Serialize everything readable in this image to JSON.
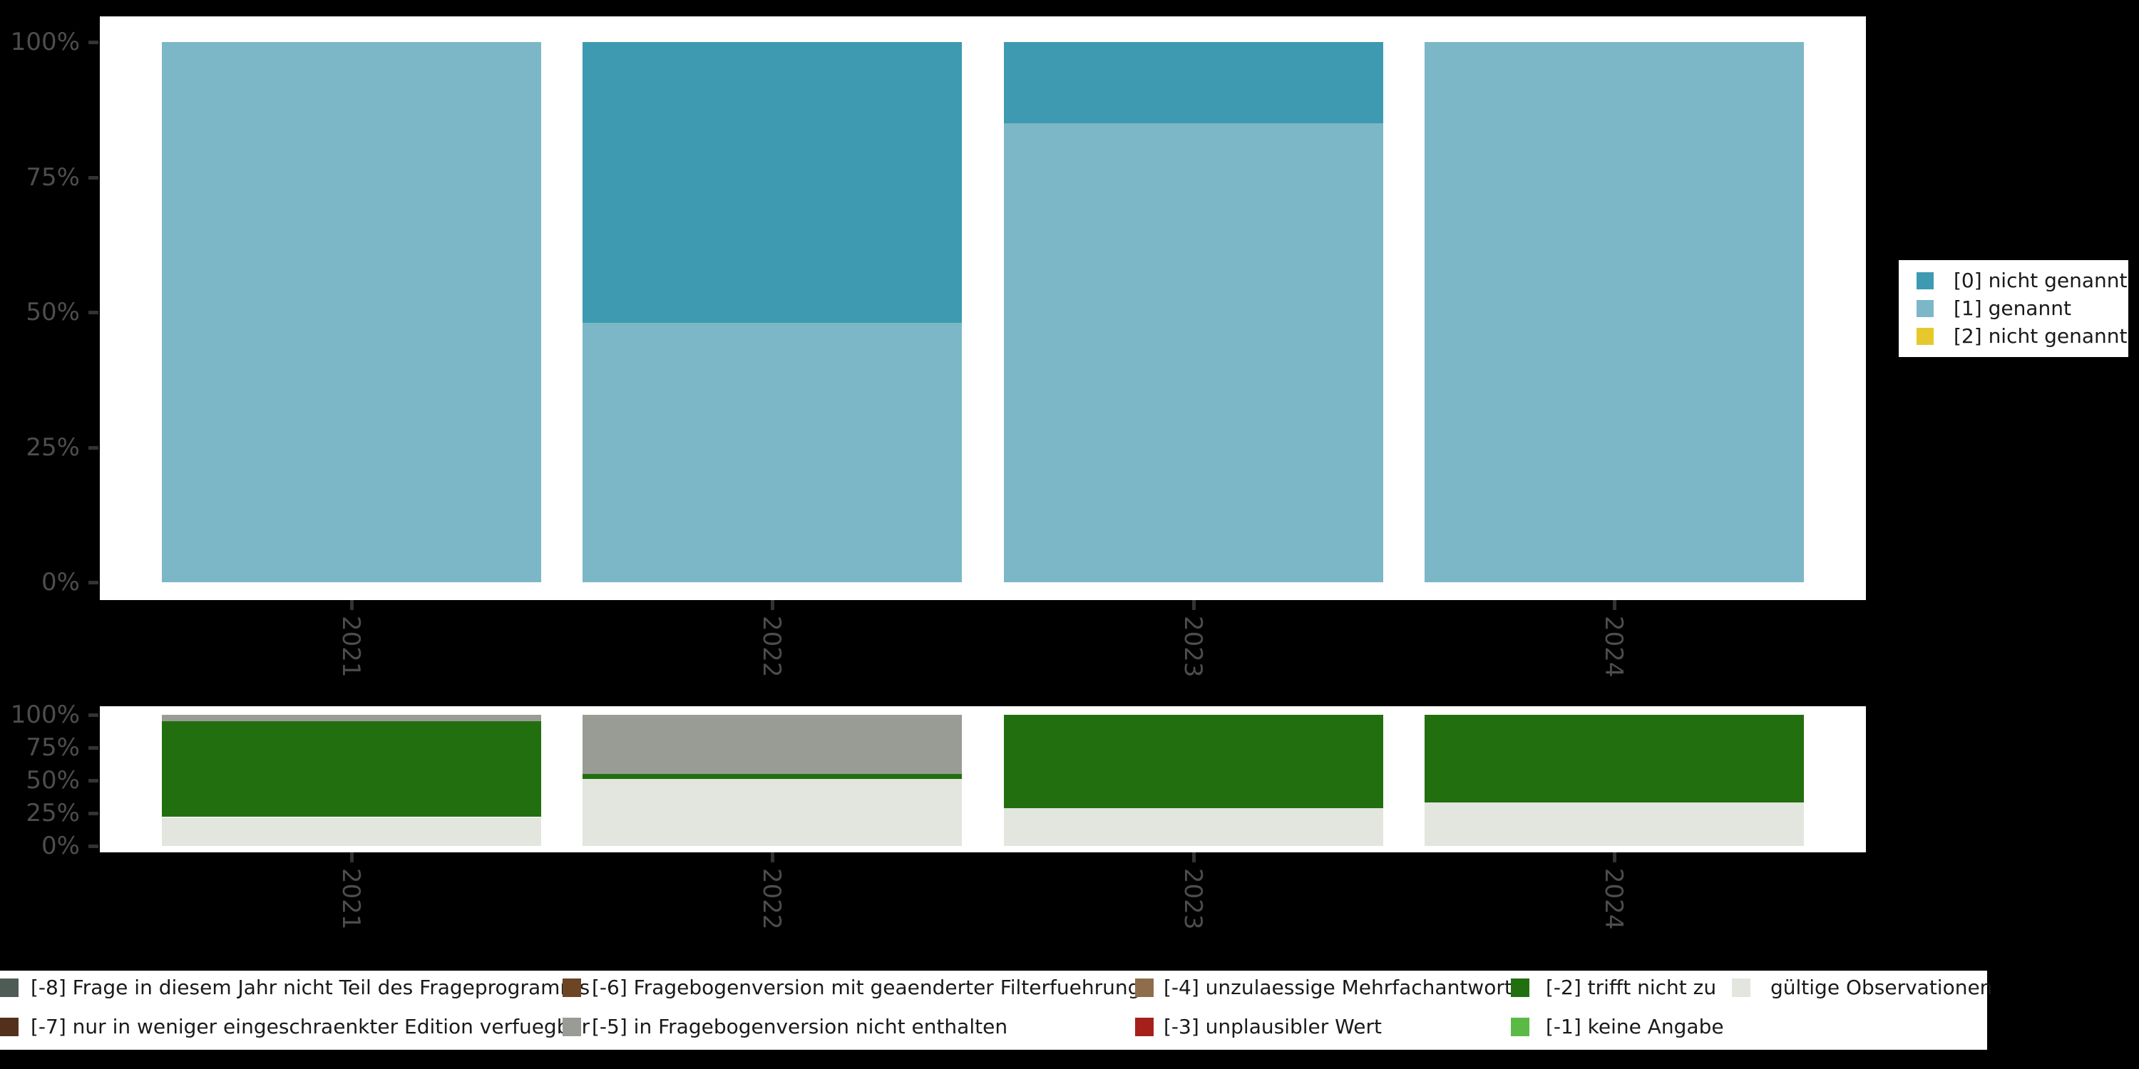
{
  "figure": {
    "background": "#000000",
    "panel_background": "#ffffff"
  },
  "colors": {
    "cat0": "#3D9AB0",
    "cat1": "#7CB7C8",
    "cat2": "#E6C82D",
    "m8": "#4F5B55",
    "m7": "#53301C",
    "m6": "#6C4524",
    "m5": "#999C95",
    "m4": "#8F6D4B",
    "m3": "#A6201B",
    "m2": "#226F10",
    "m1": "#5BBA46",
    "valid": "#E2E6DE",
    "axis_text": "#4D4D4D",
    "tick_mark": "#333333",
    "legend_text": "#1a1a1a"
  },
  "chart_data": [
    {
      "type": "bar",
      "stacked": true,
      "orientation": "vertical",
      "unit": "%",
      "title": "",
      "xlabel": "",
      "ylabel": "",
      "grid": false,
      "categories": [
        "2021",
        "2022",
        "2023",
        "2024"
      ],
      "series": [
        {
          "name": "[0] nicht genannt",
          "color": "cat0",
          "values": [
            0,
            52,
            15,
            0
          ]
        },
        {
          "name": "[1] genannt",
          "color": "cat1",
          "values": [
            100,
            48,
            85,
            100
          ]
        },
        {
          "name": "[2] nicht genannt",
          "color": "cat2",
          "values": [
            0,
            0,
            0,
            0
          ]
        }
      ],
      "y_ticks": [
        "100%",
        "75%",
        "50%",
        "25%",
        "0%"
      ],
      "ylim": [
        0,
        100
      ],
      "legend_position": "right-outside"
    },
    {
      "type": "bar",
      "stacked": true,
      "orientation": "vertical",
      "unit": "%",
      "title": "",
      "xlabel": "",
      "ylabel": "",
      "grid": false,
      "categories": [
        "2021",
        "2022",
        "2023",
        "2024"
      ],
      "series": [
        {
          "name": "[-8] Frage in diesem Jahr nicht Teil des Frageprogramms",
          "color": "m8",
          "values": [
            0,
            0,
            0,
            0
          ]
        },
        {
          "name": "[-7] nur in weniger eingeschraenkter Edition verfuegbar",
          "color": "m7",
          "values": [
            0,
            0,
            0,
            0
          ]
        },
        {
          "name": "[-6] Fragebogenversion mit geaenderter Filterfuehrung",
          "color": "m6",
          "values": [
            0,
            0,
            0,
            0
          ]
        },
        {
          "name": "[-5] in Fragebogenversion nicht enthalten",
          "color": "m5",
          "values": [
            5,
            45,
            0,
            0
          ]
        },
        {
          "name": "[-4] unzulaessige Mehrfachantwort",
          "color": "m4",
          "values": [
            0,
            0,
            0,
            0
          ]
        },
        {
          "name": "[-3] unplausibler Wert",
          "color": "m3",
          "values": [
            0,
            0,
            0,
            0
          ]
        },
        {
          "name": "[-2] trifft nicht zu",
          "color": "m2",
          "values": [
            73,
            4,
            71,
            67
          ]
        },
        {
          "name": "[-1] keine Angabe",
          "color": "m1",
          "values": [
            0,
            0,
            0,
            0
          ]
        },
        {
          "name": "gültige Observationen",
          "color": "valid",
          "values": [
            22,
            51,
            29,
            33
          ]
        }
      ],
      "y_ticks": [
        "100%",
        "75%",
        "50%",
        "25%",
        "0%"
      ],
      "ylim": [
        0,
        100
      ],
      "legend_position": "bottom-outside"
    }
  ],
  "top_legend": {
    "entries": [
      {
        "label": "[0] nicht genannt",
        "color": "cat0"
      },
      {
        "label": "[1] genannt",
        "color": "cat1"
      },
      {
        "label": "[2] nicht genannt",
        "color": "cat2"
      }
    ]
  },
  "bottom_legend": {
    "columns": [
      [
        {
          "label": "[-8] Frage in diesem Jahr nicht Teil des Frageprogramms",
          "color": "m8"
        },
        {
          "label": "[-7] nur in weniger eingeschraenkter Edition verfuegbar",
          "color": "m7"
        }
      ],
      [
        {
          "label": "[-6] Fragebogenversion mit geaenderter Filterfuehrung",
          "color": "m6"
        },
        {
          "label": "[-5] in Fragebogenversion nicht enthalten",
          "color": "m5"
        }
      ],
      [
        {
          "label": "[-4] unzulaessige Mehrfachantwort",
          "color": "m4"
        },
        {
          "label": "[-3] unplausibler Wert",
          "color": "m3"
        }
      ],
      [
        {
          "label": "[-2] trifft nicht zu",
          "color": "m2"
        },
        {
          "label": "[-1] keine Angabe",
          "color": "m1"
        }
      ],
      [
        {
          "label": "gültige Observationen",
          "color": "valid"
        }
      ]
    ]
  }
}
